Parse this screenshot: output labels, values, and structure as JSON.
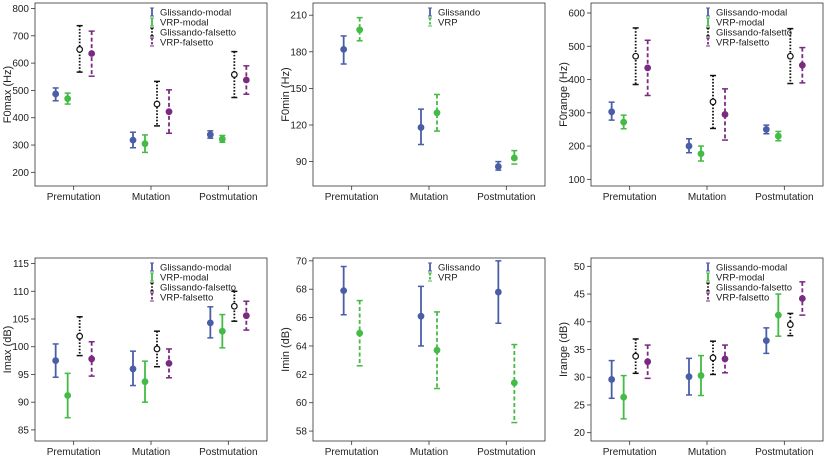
{
  "colors": {
    "glissando_modal": "#4a5ea8",
    "vrp_modal": "#44bb44",
    "glissando_falsetto": "#111111",
    "vrp_falsetto": "#7b2a82"
  },
  "chart_data": [
    {
      "type": "errorbar",
      "ylabel": "F0max (Hz)",
      "ylim": [
        150,
        820
      ],
      "yticks": [
        200,
        300,
        400,
        500,
        600,
        700,
        800
      ],
      "categories": [
        "Premutation",
        "Mutation",
        "Postmutation"
      ],
      "series": [
        {
          "name": "Glissando-modal",
          "color": "#4a5ea8",
          "style": "solid",
          "mean": [
            487,
            318,
            338
          ],
          "low": [
            462,
            290,
            325
          ],
          "high": [
            509,
            347,
            352
          ]
        },
        {
          "name": "VRP-modal",
          "color": "#44bb44",
          "style": "solid",
          "mean": [
            470,
            305,
            322
          ],
          "low": [
            450,
            273,
            310
          ],
          "high": [
            490,
            337,
            335
          ]
        },
        {
          "name": "Glissando-falsetto",
          "color": "#111111",
          "style": "dotted",
          "mean": [
            650,
            450,
            558
          ],
          "low": [
            567,
            370,
            474
          ],
          "high": [
            737,
            533,
            642
          ]
        },
        {
          "name": "VRP-falsetto",
          "color": "#7b2a82",
          "style": "dashed",
          "mean": [
            635,
            422,
            538
          ],
          "low": [
            552,
            343,
            486
          ],
          "high": [
            717,
            502,
            590
          ]
        }
      ]
    },
    {
      "type": "errorbar",
      "ylabel": "F0min (Hz)",
      "ylim": [
        70,
        220
      ],
      "yticks": [
        90,
        120,
        150,
        180,
        210
      ],
      "categories": [
        "Premutation",
        "Mutation",
        "Postmutation"
      ],
      "series": [
        {
          "name": "Glissando",
          "color": "#4a5ea8",
          "style": "solid",
          "mean": [
            182,
            118,
            86
          ],
          "low": [
            170,
            104,
            83
          ],
          "high": [
            193,
            133,
            90
          ]
        },
        {
          "name": "VRP",
          "color": "#44bb44",
          "style": "dashed",
          "mean": [
            198,
            130,
            93
          ],
          "low": [
            189,
            115,
            88
          ],
          "high": [
            208,
            145,
            99
          ]
        }
      ]
    },
    {
      "type": "errorbar",
      "ylabel": "F0range (Hz)",
      "ylim": [
        80,
        630
      ],
      "yticks": [
        100,
        200,
        300,
        400,
        500,
        600
      ],
      "categories": [
        "Premutation",
        "Mutation",
        "Postmutation"
      ],
      "series": [
        {
          "name": "Glissando-modal",
          "color": "#4a5ea8",
          "style": "solid",
          "mean": [
            303,
            200,
            250
          ],
          "low": [
            278,
            180,
            237
          ],
          "high": [
            332,
            222,
            263
          ]
        },
        {
          "name": "VRP-modal",
          "color": "#44bb44",
          "style": "solid",
          "mean": [
            272,
            177,
            230
          ],
          "low": [
            252,
            155,
            216
          ],
          "high": [
            293,
            200,
            244
          ]
        },
        {
          "name": "Glissando-falsetto",
          "color": "#111111",
          "style": "dotted",
          "mean": [
            470,
            333,
            470
          ],
          "low": [
            385,
            253,
            388
          ],
          "high": [
            555,
            412,
            553
          ]
        },
        {
          "name": "VRP-falsetto",
          "color": "#7b2a82",
          "style": "dashed",
          "mean": [
            435,
            295,
            443
          ],
          "low": [
            352,
            218,
            390
          ],
          "high": [
            518,
            372,
            496
          ]
        }
      ]
    },
    {
      "type": "errorbar",
      "ylabel": "Imax (dB)",
      "ylim": [
        83,
        116
      ],
      "yticks": [
        85,
        90,
        95,
        100,
        105,
        110,
        115
      ],
      "categories": [
        "Premutation",
        "Mutation",
        "Postmutation"
      ],
      "series": [
        {
          "name": "Glissando-modal",
          "color": "#4a5ea8",
          "style": "solid",
          "mean": [
            97.5,
            96,
            104.3
          ],
          "low": [
            94.5,
            93,
            101.6
          ],
          "high": [
            100.5,
            99.2,
            107.2
          ]
        },
        {
          "name": "VRP-modal",
          "color": "#44bb44",
          "style": "solid",
          "mean": [
            91.2,
            93.7,
            102.8
          ],
          "low": [
            87.2,
            90,
            99.8
          ],
          "high": [
            95.2,
            97.4,
            105.8
          ]
        },
        {
          "name": "Glissando-falsetto",
          "color": "#111111",
          "style": "dotted",
          "mean": [
            101.9,
            99.6,
            107.3
          ],
          "low": [
            98.4,
            96.4,
            104.6
          ],
          "high": [
            105.4,
            102.8,
            110
          ]
        },
        {
          "name": "VRP-falsetto",
          "color": "#7b2a82",
          "style": "dashed",
          "mean": [
            97.8,
            97,
            105.6
          ],
          "low": [
            94.7,
            94.4,
            103
          ],
          "high": [
            100.9,
            99.6,
            108.2
          ]
        }
      ]
    },
    {
      "type": "errorbar",
      "ylabel": "Imin (dB)",
      "ylim": [
        57.3,
        70.2
      ],
      "yticks": [
        58,
        60,
        62,
        64,
        66,
        68,
        70
      ],
      "categories": [
        "Premutation",
        "Mutation",
        "Postmutation"
      ],
      "series": [
        {
          "name": "Glissando",
          "color": "#4a5ea8",
          "style": "solid",
          "mean": [
            67.9,
            66.1,
            67.8
          ],
          "low": [
            66.2,
            64,
            65.6
          ],
          "high": [
            69.6,
            68.2,
            70
          ]
        },
        {
          "name": "VRP",
          "color": "#44bb44",
          "style": "dashed",
          "mean": [
            64.9,
            63.7,
            61.4
          ],
          "low": [
            62.6,
            61,
            58.6
          ],
          "high": [
            67.2,
            66.4,
            64.1
          ]
        }
      ]
    },
    {
      "type": "errorbar",
      "ylabel": "Irange (dB)",
      "ylim": [
        18.5,
        51.5
      ],
      "yticks": [
        20,
        25,
        30,
        35,
        40,
        45,
        50
      ],
      "categories": [
        "Premutation",
        "Mutation",
        "Postmutation"
      ],
      "series": [
        {
          "name": "Glissando-modal",
          "color": "#4a5ea8",
          "style": "solid",
          "mean": [
            29.6,
            30.1,
            36.6
          ],
          "low": [
            26.2,
            26.8,
            34.3
          ],
          "high": [
            33,
            33.4,
            38.9
          ]
        },
        {
          "name": "VRP-modal",
          "color": "#44bb44",
          "style": "solid",
          "mean": [
            26.4,
            30.3,
            41.2
          ],
          "low": [
            22.5,
            26.7,
            37.4
          ],
          "high": [
            30.3,
            33.9,
            45
          ]
        },
        {
          "name": "Glissando-falsetto",
          "color": "#111111",
          "style": "dotted",
          "mean": [
            33.8,
            33.5,
            39.5
          ],
          "low": [
            30.7,
            30.5,
            37.5
          ],
          "high": [
            36.9,
            36.5,
            41.5
          ]
        },
        {
          "name": "VRP-falsetto",
          "color": "#7b2a82",
          "style": "dashed",
          "mean": [
            32.8,
            33.3,
            44.2
          ],
          "low": [
            29.8,
            30.8,
            41.2
          ],
          "high": [
            35.8,
            35.8,
            47.2
          ]
        }
      ]
    }
  ]
}
